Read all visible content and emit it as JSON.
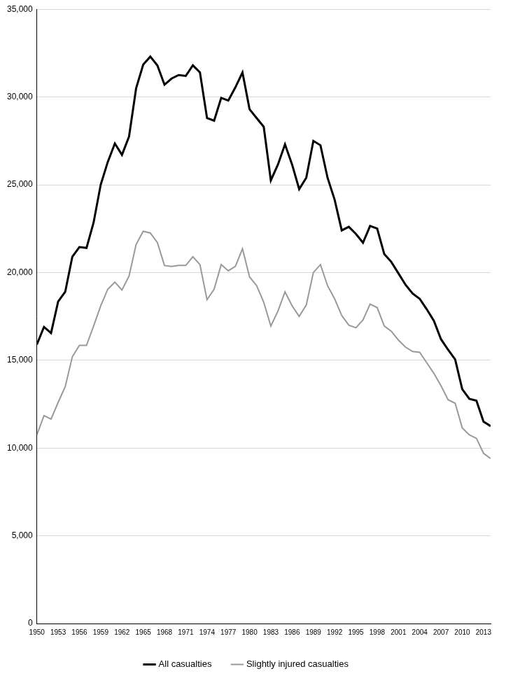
{
  "chart_data": {
    "type": "line",
    "categories": [
      "1950",
      null,
      null,
      "1953",
      null,
      null,
      "1956",
      null,
      null,
      "1959",
      null,
      null,
      "1962",
      null,
      null,
      "1965",
      null,
      null,
      "1968",
      null,
      null,
      "1971",
      null,
      null,
      "1974",
      null,
      null,
      "1977",
      null,
      null,
      "1980",
      null,
      null,
      "1983",
      null,
      null,
      "1986",
      null,
      null,
      "1989",
      null,
      null,
      "1992",
      null,
      null,
      "1995",
      null,
      null,
      "1998",
      null,
      null,
      "2001",
      null,
      null,
      "2004",
      null,
      null,
      "2007",
      null,
      null,
      "2010",
      null,
      null,
      "2013",
      null
    ],
    "series": [
      {
        "name": "All casualties",
        "color": "#000000",
        "values": [
          15900,
          16900,
          16550,
          18350,
          18900,
          20900,
          21450,
          21400,
          22850,
          25000,
          26300,
          27350,
          26700,
          27750,
          30500,
          31850,
          32300,
          31800,
          30700,
          31050,
          31250,
          31200,
          31800,
          31400,
          28800,
          28650,
          29950,
          29800,
          30550,
          31400,
          29300,
          28800,
          28300,
          25250,
          26150,
          27300,
          26150,
          24750,
          25400,
          27500,
          27250,
          25400,
          24150,
          22400,
          22600,
          22200,
          21700,
          22650,
          22500,
          21050,
          20600,
          19950,
          19300,
          18800,
          18500,
          17900,
          17250,
          16200,
          15600,
          15050,
          13350,
          12800,
          12700,
          11500,
          11250
        ]
      },
      {
        "name": "Slightly injured casualties",
        "color": "#999999",
        "values": [
          10750,
          11850,
          11650,
          12600,
          13500,
          15200,
          15850,
          15850,
          16950,
          18100,
          19050,
          19450,
          19000,
          19800,
          21600,
          22350,
          22250,
          21700,
          20400,
          20350,
          20400,
          20400,
          20900,
          20450,
          18450,
          19050,
          20450,
          20100,
          20350,
          21350,
          19750,
          19250,
          18300,
          16950,
          17800,
          18900,
          18100,
          17500,
          18150,
          20000,
          20450,
          19250,
          18500,
          17550,
          17000,
          16850,
          17300,
          18200,
          18000,
          16950,
          16650,
          16150,
          15750,
          15500,
          15450,
          14850,
          14250,
          13550,
          12750,
          12550,
          11150,
          10750,
          10550,
          9700,
          9400
        ]
      }
    ],
    "ylim": [
      0,
      35000
    ],
    "yticks": [
      0,
      {
        "value": 5000,
        "label": "5,000"
      },
      {
        "value": 10000,
        "label": "10,000"
      },
      {
        "value": 15000,
        "label": "15,000"
      },
      {
        "value": 20000,
        "label": "20,000"
      },
      {
        "value": 25000,
        "label": "25,000"
      },
      {
        "value": 30000,
        "label": "30,000"
      },
      {
        "value": 35000,
        "label": "35,000"
      }
    ],
    "grid": true,
    "legend": "bottom"
  }
}
